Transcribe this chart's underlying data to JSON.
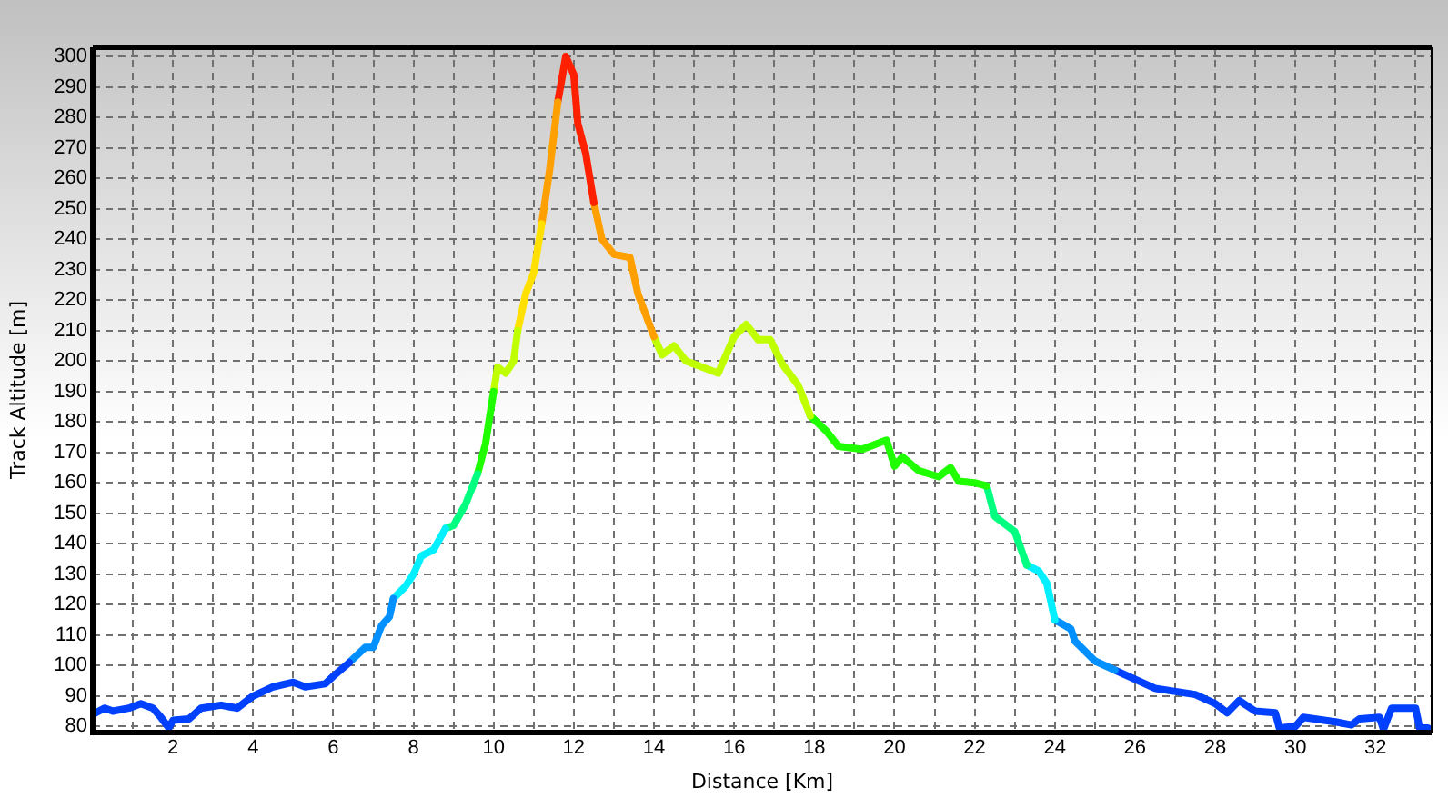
{
  "chart_data": {
    "type": "line",
    "xlabel": "Distance [Km]",
    "ylabel": "Track Altitude [m]",
    "series": [
      {
        "color": "#0040ff",
        "x": [
          0,
          0.3,
          0.5,
          0.9,
          1.2,
          1.5,
          1.7,
          1.9,
          2.0,
          2.4,
          2.7,
          3.2,
          3.6,
          4.0,
          4.5,
          5.0,
          5.3,
          5.8,
          6.0,
          6.4
        ],
        "values": [
          84,
          86,
          85,
          86,
          87.5,
          86,
          83,
          79.5,
          82,
          82.5,
          86,
          87,
          86,
          90,
          93,
          94.5,
          93,
          94,
          96.5,
          101
        ]
      },
      {
        "color": "#0090ff",
        "x": [
          6.4,
          6.8,
          7.0,
          7.2,
          7.4,
          7.5
        ],
        "values": [
          101,
          106,
          106,
          113,
          116,
          122
        ]
      },
      {
        "color": "#00f0ff",
        "x": [
          7.5,
          7.8,
          8.0,
          8.2,
          8.5,
          8.8
        ],
        "values": [
          122,
          126,
          130,
          136,
          138,
          145
        ]
      },
      {
        "color": "#00ff80",
        "x": [
          8.8,
          9.0,
          9.3,
          9.6
        ],
        "values": [
          145,
          146,
          153,
          163
        ]
      },
      {
        "color": "#20ff00",
        "x": [
          9.6,
          9.8,
          10.0
        ],
        "values": [
          163,
          173,
          190
        ]
      },
      {
        "color": "#c0ff00",
        "x": [
          10.0,
          10.1,
          10.3,
          10.5,
          10.6
        ],
        "values": [
          190,
          198,
          196,
          200,
          210
        ]
      },
      {
        "color": "#ffe000",
        "x": [
          10.6,
          10.8,
          11.0,
          11.2
        ],
        "values": [
          210,
          222,
          229,
          245
        ]
      },
      {
        "color": "#ffa000",
        "x": [
          11.2,
          11.4,
          11.6
        ],
        "values": [
          245,
          263,
          285
        ]
      },
      {
        "color": "#ff2000",
        "x": [
          11.6,
          11.8,
          12.0,
          12.1,
          12.3,
          12.5
        ],
        "values": [
          285,
          300,
          294,
          278,
          268,
          252
        ]
      },
      {
        "color": "#ffa000",
        "x": [
          12.5,
          12.7,
          13.0,
          13.4,
          13.6,
          14.0
        ],
        "values": [
          252,
          240,
          235,
          234,
          222,
          208
        ]
      },
      {
        "color": "#c0ff00",
        "x": [
          14.0,
          14.2,
          14.5,
          14.8,
          15.2,
          15.6,
          16.0,
          16.3,
          16.6,
          16.9,
          17.2,
          17.6,
          17.9
        ],
        "values": [
          208,
          202,
          205,
          200,
          198,
          196,
          208,
          212,
          207,
          207,
          199,
          192,
          182
        ]
      },
      {
        "color": "#20ff00",
        "x": [
          17.9,
          18.3,
          18.6,
          19.2,
          19.8,
          20.0,
          20.2,
          20.6,
          21.1,
          21.4,
          21.6,
          22.0,
          22.3
        ],
        "values": [
          182,
          177,
          172,
          171,
          174,
          165.5,
          168.5,
          164,
          162,
          165,
          160.5,
          160,
          159
        ]
      },
      {
        "color": "#00ff80",
        "x": [
          22.3,
          22.5,
          23.0,
          23.3
        ],
        "values": [
          159,
          149,
          144,
          133
        ]
      },
      {
        "color": "#00f0ff",
        "x": [
          23.3,
          23.6,
          23.8,
          24.0
        ],
        "values": [
          133,
          131,
          127,
          115
        ]
      },
      {
        "color": "#0090ff",
        "x": [
          24.0,
          24.4,
          24.5,
          25.0,
          25.5
        ],
        "values": [
          115,
          112,
          108,
          101.5,
          98.5
        ]
      },
      {
        "color": "#0040ff",
        "x": [
          25.5,
          26.0,
          26.5,
          27.5,
          28.0,
          28.3,
          28.6,
          29.0,
          29.5,
          29.6,
          30.0,
          30.2,
          31.0,
          31.4,
          31.6,
          32.1,
          32.2,
          32.4,
          33.0,
          33.1,
          33.3
        ],
        "values": [
          98.5,
          95.5,
          92.5,
          90.5,
          87.5,
          84.5,
          88.5,
          85,
          84.5,
          79.5,
          80,
          83,
          81.5,
          80.5,
          82.5,
          83,
          79,
          86,
          86,
          79.5,
          79.5
        ]
      }
    ],
    "xlim": [
      0,
      33.4
    ],
    "ylim": [
      78,
      303
    ],
    "xticks": [
      {
        "value": 1,
        "label": null
      },
      2,
      {
        "value": 3,
        "label": null
      },
      4,
      {
        "value": 5,
        "label": null
      },
      6,
      {
        "value": 7,
        "label": null
      },
      8,
      {
        "value": 9,
        "label": null
      },
      10,
      {
        "value": 11,
        "label": null
      },
      12,
      {
        "value": 13,
        "label": null
      },
      14,
      {
        "value": 15,
        "label": null
      },
      16,
      {
        "value": 17,
        "label": null
      },
      18,
      {
        "value": 19,
        "label": null
      },
      20,
      {
        "value": 21,
        "label": null
      },
      22,
      {
        "value": 23,
        "label": null
      },
      24,
      {
        "value": 25,
        "label": null
      },
      26,
      {
        "value": 27,
        "label": null
      },
      28,
      {
        "value": 29,
        "label": null
      },
      30,
      {
        "value": 31,
        "label": null
      },
      32,
      {
        "value": 33,
        "label": null
      }
    ],
    "yticks": [
      80,
      90,
      100,
      110,
      120,
      130,
      140,
      150,
      160,
      170,
      180,
      190,
      200,
      210,
      220,
      230,
      240,
      250,
      260,
      270,
      280,
      290,
      300
    ],
    "grid": true,
    "legend": false,
    "marker": "none",
    "line_style": "solid"
  }
}
